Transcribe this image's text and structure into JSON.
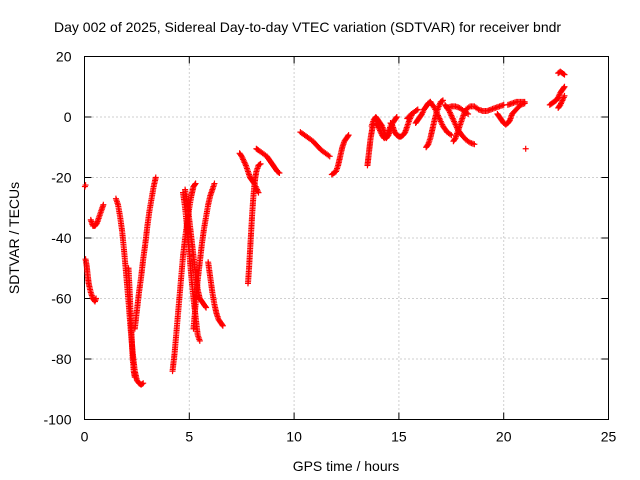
{
  "chart_data": {
    "type": "scatter",
    "title": "Day 002 of 2025, Sidereal Day-to-day VTEC variation (SDTVAR) for receiver bndr",
    "xlabel": "GPS time / hours",
    "ylabel": "SDTVAR / TECUs",
    "xlim": [
      0,
      25
    ],
    "ylim": [
      -100,
      20
    ],
    "xticks": [
      0,
      5,
      10,
      15,
      20,
      25
    ],
    "yticks": [
      -100,
      -80,
      -60,
      -40,
      -20,
      0,
      20
    ],
    "xtick_labels": [
      "0",
      "5",
      "10",
      "15",
      "20",
      "25"
    ],
    "ytick_labels": [
      "-100",
      "-80",
      "-60",
      "-40",
      "-20",
      "0",
      "20"
    ],
    "grid": true,
    "marker": "+",
    "color": "#ff0000",
    "series": [
      {
        "points": [
          [
            0.02,
            -23
          ],
          [
            0.05,
            -22.5
          ]
        ]
      },
      {
        "points": [
          [
            0.05,
            -47
          ],
          [
            0.1,
            -49
          ],
          [
            0.15,
            -52
          ],
          [
            0.2,
            -55
          ],
          [
            0.3,
            -58
          ],
          [
            0.4,
            -60
          ],
          [
            0.5,
            -61
          ],
          [
            0.55,
            -60
          ]
        ]
      },
      {
        "points": [
          [
            0.3,
            -34
          ],
          [
            0.35,
            -35
          ],
          [
            0.4,
            -36
          ],
          [
            0.5,
            -36
          ],
          [
            0.6,
            -35
          ],
          [
            0.7,
            -33
          ],
          [
            0.8,
            -31
          ],
          [
            0.9,
            -29
          ]
        ]
      },
      {
        "points": [
          [
            1.5,
            -27
          ],
          [
            1.6,
            -29
          ],
          [
            1.7,
            -33
          ],
          [
            1.8,
            -38
          ],
          [
            1.9,
            -45
          ],
          [
            2.0,
            -53
          ],
          [
            2.1,
            -61
          ],
          [
            2.2,
            -70
          ],
          [
            2.3,
            -78
          ],
          [
            2.4,
            -84
          ],
          [
            2.5,
            -87
          ],
          [
            2.6,
            -88
          ],
          [
            2.7,
            -88.5
          ],
          [
            2.8,
            -88
          ]
        ]
      },
      {
        "points": [
          [
            2.1,
            -50
          ],
          [
            2.15,
            -57
          ],
          [
            2.2,
            -65
          ],
          [
            2.25,
            -73
          ],
          [
            2.3,
            -80
          ],
          [
            2.35,
            -84
          ],
          [
            2.4,
            -86
          ]
        ]
      },
      {
        "points": [
          [
            2.4,
            -70
          ],
          [
            2.5,
            -64
          ],
          [
            2.6,
            -58
          ],
          [
            2.7,
            -53
          ],
          [
            2.8,
            -47
          ],
          [
            2.9,
            -42
          ],
          [
            3.0,
            -36
          ],
          [
            3.1,
            -31
          ],
          [
            3.2,
            -27
          ],
          [
            3.3,
            -23
          ],
          [
            3.4,
            -20
          ]
        ]
      },
      {
        "points": [
          [
            4.2,
            -84
          ],
          [
            4.3,
            -78
          ],
          [
            4.4,
            -70
          ],
          [
            4.5,
            -62
          ],
          [
            4.6,
            -54
          ],
          [
            4.7,
            -46
          ],
          [
            4.8,
            -40
          ],
          [
            4.9,
            -35
          ],
          [
            5.0,
            -30
          ],
          [
            5.1,
            -26
          ],
          [
            5.2,
            -23
          ],
          [
            5.3,
            -22
          ]
        ]
      },
      {
        "points": [
          [
            4.7,
            -25
          ],
          [
            4.8,
            -30
          ],
          [
            4.9,
            -37
          ],
          [
            5.0,
            -45
          ],
          [
            5.1,
            -53
          ],
          [
            5.2,
            -60
          ],
          [
            5.3,
            -66
          ],
          [
            5.4,
            -72
          ],
          [
            5.5,
            -74
          ]
        ]
      },
      {
        "points": [
          [
            4.8,
            -24
          ],
          [
            4.9,
            -28
          ],
          [
            5.0,
            -34
          ],
          [
            5.1,
            -40
          ],
          [
            5.2,
            -46
          ],
          [
            5.3,
            -52
          ],
          [
            5.4,
            -57
          ],
          [
            5.5,
            -60
          ],
          [
            5.6,
            -61
          ],
          [
            5.7,
            -62
          ],
          [
            5.8,
            -63
          ]
        ]
      },
      {
        "points": [
          [
            5.2,
            -70
          ],
          [
            5.3,
            -62
          ],
          [
            5.4,
            -54
          ],
          [
            5.5,
            -48
          ],
          [
            5.6,
            -42
          ],
          [
            5.7,
            -37
          ],
          [
            5.8,
            -33
          ],
          [
            5.9,
            -29
          ],
          [
            6.0,
            -26
          ],
          [
            6.1,
            -24
          ],
          [
            6.2,
            -22
          ]
        ]
      },
      {
        "points": [
          [
            5.9,
            -48
          ],
          [
            6.0,
            -53
          ],
          [
            6.1,
            -58
          ],
          [
            6.2,
            -62
          ],
          [
            6.3,
            -65
          ],
          [
            6.4,
            -67
          ],
          [
            6.5,
            -68
          ],
          [
            6.6,
            -69
          ]
        ]
      },
      {
        "points": [
          [
            7.4,
            -12
          ],
          [
            7.5,
            -13
          ],
          [
            7.6,
            -14.5
          ],
          [
            7.7,
            -16
          ],
          [
            7.8,
            -18
          ],
          [
            7.9,
            -20
          ],
          [
            8.0,
            -21
          ],
          [
            8.1,
            -22
          ],
          [
            8.2,
            -23.5
          ],
          [
            8.3,
            -25
          ]
        ]
      },
      {
        "points": [
          [
            7.8,
            -55
          ],
          [
            7.85,
            -50
          ],
          [
            7.9,
            -44
          ],
          [
            7.95,
            -38
          ],
          [
            8.0,
            -32
          ],
          [
            8.05,
            -27
          ],
          [
            8.1,
            -23
          ],
          [
            8.15,
            -20
          ],
          [
            8.2,
            -18
          ],
          [
            8.3,
            -16
          ],
          [
            8.4,
            -15.5
          ]
        ]
      },
      {
        "points": [
          [
            8.2,
            -10.5
          ],
          [
            8.3,
            -11
          ],
          [
            8.5,
            -12
          ],
          [
            8.7,
            -13
          ],
          [
            8.8,
            -14
          ],
          [
            8.9,
            -15
          ],
          [
            9.0,
            -16
          ],
          [
            9.1,
            -17
          ],
          [
            9.2,
            -18
          ],
          [
            9.3,
            -18.5
          ]
        ]
      },
      {
        "points": [
          [
            10.3,
            -5
          ],
          [
            10.5,
            -6
          ],
          [
            10.7,
            -7
          ],
          [
            10.9,
            -8
          ],
          [
            11.1,
            -9.5
          ],
          [
            11.3,
            -11
          ],
          [
            11.5,
            -12
          ],
          [
            11.7,
            -13
          ]
        ]
      },
      {
        "points": [
          [
            11.8,
            -19
          ],
          [
            11.9,
            -18.5
          ],
          [
            12.0,
            -18
          ],
          [
            12.1,
            -16
          ],
          [
            12.2,
            -13
          ],
          [
            12.3,
            -10
          ],
          [
            12.4,
            -8
          ],
          [
            12.5,
            -7
          ],
          [
            12.6,
            -6
          ]
        ]
      },
      {
        "points": [
          [
            13.5,
            -16
          ],
          [
            13.55,
            -13
          ],
          [
            13.6,
            -10
          ],
          [
            13.65,
            -7
          ],
          [
            13.7,
            -5
          ],
          [
            13.75,
            -3
          ],
          [
            13.8,
            -2
          ]
        ]
      },
      {
        "points": [
          [
            13.7,
            -3
          ],
          [
            13.8,
            -1
          ],
          [
            13.9,
            0
          ],
          [
            14.0,
            -1
          ],
          [
            14.1,
            -2
          ],
          [
            14.2,
            -3
          ],
          [
            14.3,
            -5
          ],
          [
            14.4,
            -7
          ],
          [
            14.5,
            -6
          ],
          [
            14.6,
            -4
          ],
          [
            14.7,
            -2
          ],
          [
            14.8,
            -1
          ],
          [
            14.9,
            0
          ]
        ]
      },
      {
        "points": [
          [
            13.9,
            -2
          ],
          [
            14.0,
            -3
          ],
          [
            14.1,
            -4.5
          ],
          [
            14.2,
            -6
          ],
          [
            14.3,
            -7
          ],
          [
            14.4,
            -6.5
          ],
          [
            14.5,
            -5
          ],
          [
            14.6,
            -3
          ]
        ]
      },
      {
        "points": [
          [
            14.6,
            -2
          ],
          [
            14.7,
            -3
          ],
          [
            14.8,
            -5
          ],
          [
            14.9,
            -6
          ],
          [
            15.0,
            -6.5
          ],
          [
            15.1,
            -6.5
          ],
          [
            15.2,
            -6
          ],
          [
            15.3,
            -5
          ],
          [
            15.4,
            -3
          ],
          [
            15.5,
            -1
          ],
          [
            15.6,
            0.5
          ]
        ]
      },
      {
        "points": [
          [
            15.4,
            -0.5
          ],
          [
            15.6,
            1
          ],
          [
            15.8,
            2
          ],
          [
            15.9,
            2.5
          ]
        ]
      },
      {
        "points": [
          [
            15.8,
            -2
          ],
          [
            15.9,
            -1
          ],
          [
            16.0,
            0
          ],
          [
            16.1,
            1
          ],
          [
            16.2,
            2.5
          ],
          [
            16.3,
            3.5
          ],
          [
            16.4,
            4.5
          ],
          [
            16.5,
            5
          ]
        ]
      },
      {
        "points": [
          [
            16.5,
            5
          ],
          [
            16.7,
            3
          ],
          [
            16.9,
            0
          ],
          [
            17.1,
            -3
          ],
          [
            17.3,
            -5
          ],
          [
            17.5,
            -6
          ]
        ]
      },
      {
        "points": [
          [
            16.3,
            -10
          ],
          [
            16.4,
            -9
          ],
          [
            16.5,
            -7
          ],
          [
            16.6,
            -4
          ],
          [
            16.7,
            -1
          ],
          [
            16.8,
            1.5
          ],
          [
            16.9,
            3.5
          ],
          [
            17.0,
            5
          ],
          [
            17.1,
            5.5
          ]
        ]
      },
      {
        "points": [
          [
            17.2,
            4
          ],
          [
            17.4,
            2
          ],
          [
            17.6,
            -1
          ],
          [
            17.8,
            -4
          ],
          [
            18.0,
            -6
          ],
          [
            18.2,
            -7.5
          ],
          [
            18.4,
            -8.5
          ],
          [
            18.6,
            -9
          ]
        ]
      },
      {
        "points": [
          [
            17.3,
            3
          ],
          [
            17.5,
            3.5
          ],
          [
            17.7,
            3.5
          ],
          [
            17.9,
            3
          ],
          [
            18.1,
            2
          ],
          [
            18.3,
            1
          ]
        ]
      },
      {
        "points": [
          [
            17.6,
            -8
          ],
          [
            17.7,
            -7
          ],
          [
            17.8,
            -5
          ],
          [
            17.9,
            -3
          ],
          [
            18.0,
            -1
          ],
          [
            18.1,
            1
          ],
          [
            18.2,
            2.5
          ],
          [
            18.4,
            3.5
          ],
          [
            18.6,
            3.5
          ],
          [
            18.8,
            2.5
          ],
          [
            19.0,
            2
          ],
          [
            19.2,
            2
          ],
          [
            19.4,
            2.5
          ],
          [
            19.6,
            3
          ],
          [
            19.8,
            3.5
          ],
          [
            20.0,
            4
          ]
        ]
      },
      {
        "points": [
          [
            19.7,
            1
          ],
          [
            19.8,
            0
          ],
          [
            19.9,
            -1
          ],
          [
            20.0,
            -2
          ],
          [
            20.1,
            -2.5
          ],
          [
            20.2,
            -2
          ],
          [
            20.3,
            -1
          ],
          [
            20.4,
            1
          ],
          [
            20.6,
            2.5
          ],
          [
            20.8,
            4
          ],
          [
            21.0,
            4.5
          ]
        ]
      },
      {
        "points": [
          [
            20.2,
            4
          ],
          [
            20.4,
            4.5
          ],
          [
            20.6,
            5
          ],
          [
            20.8,
            5
          ],
          [
            21.0,
            5
          ]
        ]
      },
      {
        "points": [
          [
            21.05,
            -10.5
          ]
        ]
      },
      {
        "points": [
          [
            22.2,
            4
          ],
          [
            22.3,
            4.5
          ],
          [
            22.4,
            5
          ],
          [
            22.5,
            5.5
          ],
          [
            22.6,
            6.5
          ],
          [
            22.7,
            8
          ],
          [
            22.8,
            9
          ],
          [
            22.9,
            10
          ]
        ]
      },
      {
        "points": [
          [
            22.6,
            3
          ],
          [
            22.7,
            4
          ],
          [
            22.8,
            5.5
          ],
          [
            22.9,
            7
          ]
        ]
      },
      {
        "points": [
          [
            22.6,
            14.5
          ],
          [
            22.7,
            15
          ],
          [
            22.8,
            14.5
          ],
          [
            22.9,
            14
          ]
        ]
      }
    ]
  }
}
